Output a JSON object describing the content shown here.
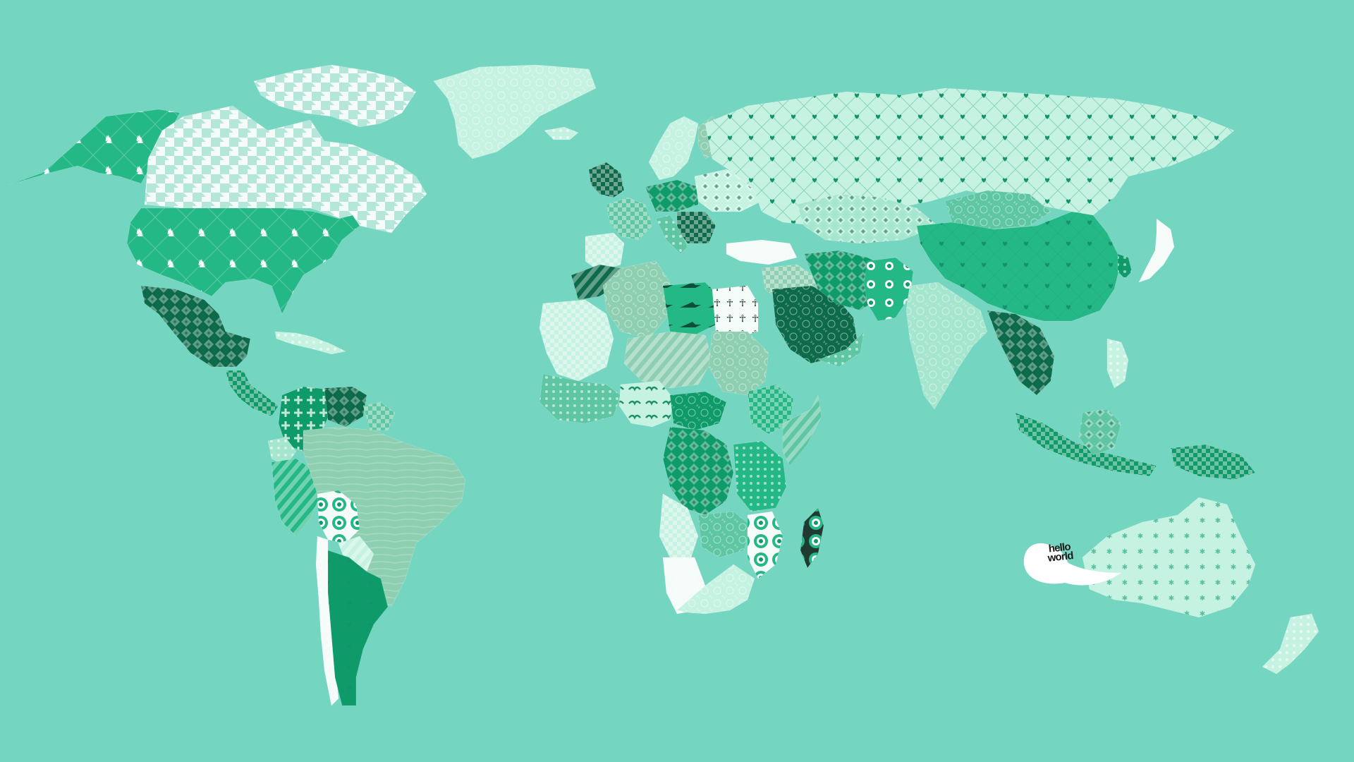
{
  "logo": {
    "line1": "hello",
    "line2": "world"
  },
  "colors": {
    "ocean": "#74d5c1",
    "white": "#f4fbf8",
    "pale": "#c6f2e2",
    "mint": "#a6e6cf",
    "sage": "#8ecfb2",
    "teal": "#5fc6a4",
    "green": "#25b887",
    "deep": "#0f9a6a",
    "dark": "#0d6b4b",
    "black": "#1f3a31"
  },
  "map": {
    "countries": [
      {
        "name": "alaska",
        "fill": "green",
        "pattern": "deer"
      },
      {
        "name": "canada",
        "fill": "white",
        "pattern": "houndstooth"
      },
      {
        "name": "canadian-arctic-islands",
        "fill": "white",
        "pattern": "houndstooth"
      },
      {
        "name": "greenland",
        "fill": "pale",
        "pattern": "lace"
      },
      {
        "name": "iceland",
        "fill": "pale",
        "pattern": "dots"
      },
      {
        "name": "usa",
        "fill": "green",
        "pattern": "deer"
      },
      {
        "name": "mexico",
        "fill": "dark",
        "pattern": "diamonds"
      },
      {
        "name": "central-america",
        "fill": "deep",
        "pattern": "checks"
      },
      {
        "name": "caribbean",
        "fill": "pale",
        "pattern": "dots"
      },
      {
        "name": "colombia",
        "fill": "deep",
        "pattern": "crosses"
      },
      {
        "name": "venezuela",
        "fill": "dark",
        "pattern": "diamonds"
      },
      {
        "name": "guianas",
        "fill": "teal",
        "pattern": "checks"
      },
      {
        "name": "ecuador",
        "fill": "mint",
        "pattern": "dots"
      },
      {
        "name": "peru",
        "fill": "green",
        "pattern": "stripes"
      },
      {
        "name": "brazil",
        "fill": "sage",
        "pattern": "wood"
      },
      {
        "name": "bolivia",
        "fill": "white",
        "pattern": "rings"
      },
      {
        "name": "paraguay",
        "fill": "pale",
        "pattern": "stripes"
      },
      {
        "name": "chile",
        "fill": "white",
        "pattern": "dots"
      },
      {
        "name": "argentina",
        "fill": "deep",
        "pattern": "hearts"
      },
      {
        "name": "uk-ireland",
        "fill": "dark",
        "pattern": "checks"
      },
      {
        "name": "scandinavia",
        "fill": "pale",
        "pattern": "lace"
      },
      {
        "name": "finland",
        "fill": "sage",
        "pattern": "lace"
      },
      {
        "name": "western-europe",
        "fill": "teal",
        "pattern": "checks"
      },
      {
        "name": "iberia",
        "fill": "pale",
        "pattern": "checks"
      },
      {
        "name": "central-europe",
        "fill": "deep",
        "pattern": "diamonds"
      },
      {
        "name": "eastern-europe",
        "fill": "pale",
        "pattern": "diamonds"
      },
      {
        "name": "balkans",
        "fill": "dark",
        "pattern": "checks"
      },
      {
        "name": "italy",
        "fill": "teal",
        "pattern": "dots"
      },
      {
        "name": "russia",
        "fill": "pale",
        "pattern": "hearts"
      },
      {
        "name": "kazakhstan",
        "fill": "mint",
        "pattern": "diamonds"
      },
      {
        "name": "mongolia",
        "fill": "teal",
        "pattern": "lace"
      },
      {
        "name": "china",
        "fill": "green",
        "pattern": "hearts"
      },
      {
        "name": "turkey",
        "fill": "white",
        "pattern": "lace"
      },
      {
        "name": "middle-east",
        "fill": "sage",
        "pattern": "checks"
      },
      {
        "name": "saudi-arabia",
        "fill": "dark",
        "pattern": "lace"
      },
      {
        "name": "yemen-oman",
        "fill": "teal",
        "pattern": "dots"
      },
      {
        "name": "iran",
        "fill": "deep",
        "pattern": "diamonds"
      },
      {
        "name": "afghanistan-pakistan",
        "fill": "green",
        "pattern": "rings"
      },
      {
        "name": "india",
        "fill": "mint",
        "pattern": "lace"
      },
      {
        "name": "southeast-asia",
        "fill": "dark",
        "pattern": "diamonds"
      },
      {
        "name": "korea",
        "fill": "deep",
        "pattern": "dots"
      },
      {
        "name": "japan",
        "fill": "white",
        "pattern": "lace"
      },
      {
        "name": "philippines",
        "fill": "pale",
        "pattern": "dots"
      },
      {
        "name": "indonesia",
        "fill": "deep",
        "pattern": "checks"
      },
      {
        "name": "borneo",
        "fill": "teal",
        "pattern": "diamonds"
      },
      {
        "name": "new-guinea",
        "fill": "deep",
        "pattern": "checks"
      },
      {
        "name": "morocco",
        "fill": "dark",
        "pattern": "stripes"
      },
      {
        "name": "algeria",
        "fill": "sage",
        "pattern": "lace"
      },
      {
        "name": "libya",
        "fill": "green",
        "pattern": "crocodile"
      },
      {
        "name": "egypt",
        "fill": "white",
        "pattern": "ankh"
      },
      {
        "name": "mauritania-mali",
        "fill": "pale",
        "pattern": "checks"
      },
      {
        "name": "niger-chad",
        "fill": "sage",
        "pattern": "stripes"
      },
      {
        "name": "sudan",
        "fill": "sage",
        "pattern": "lace"
      },
      {
        "name": "west-africa",
        "fill": "teal",
        "pattern": "dots"
      },
      {
        "name": "nigeria",
        "fill": "pale",
        "pattern": "birds"
      },
      {
        "name": "central-african-republic",
        "fill": "deep",
        "pattern": "lace"
      },
      {
        "name": "ethiopia",
        "fill": "green",
        "pattern": "checks"
      },
      {
        "name": "somalia",
        "fill": "teal",
        "pattern": "stripes"
      },
      {
        "name": "congo",
        "fill": "deep",
        "pattern": "diamonds"
      },
      {
        "name": "east-africa",
        "fill": "green",
        "pattern": "dots"
      },
      {
        "name": "angola",
        "fill": "pale",
        "pattern": "checks"
      },
      {
        "name": "zambia",
        "fill": "teal",
        "pattern": "lace"
      },
      {
        "name": "mozambique",
        "fill": "white",
        "pattern": "rings"
      },
      {
        "name": "namibia",
        "fill": "white",
        "pattern": "lace"
      },
      {
        "name": "south-africa",
        "fill": "pale",
        "pattern": "lace"
      },
      {
        "name": "madagascar",
        "fill": "black",
        "pattern": "rings"
      },
      {
        "name": "australia",
        "fill": "pale",
        "pattern": "stars"
      },
      {
        "name": "new-zealand",
        "fill": "pale",
        "pattern": "dots"
      }
    ]
  }
}
